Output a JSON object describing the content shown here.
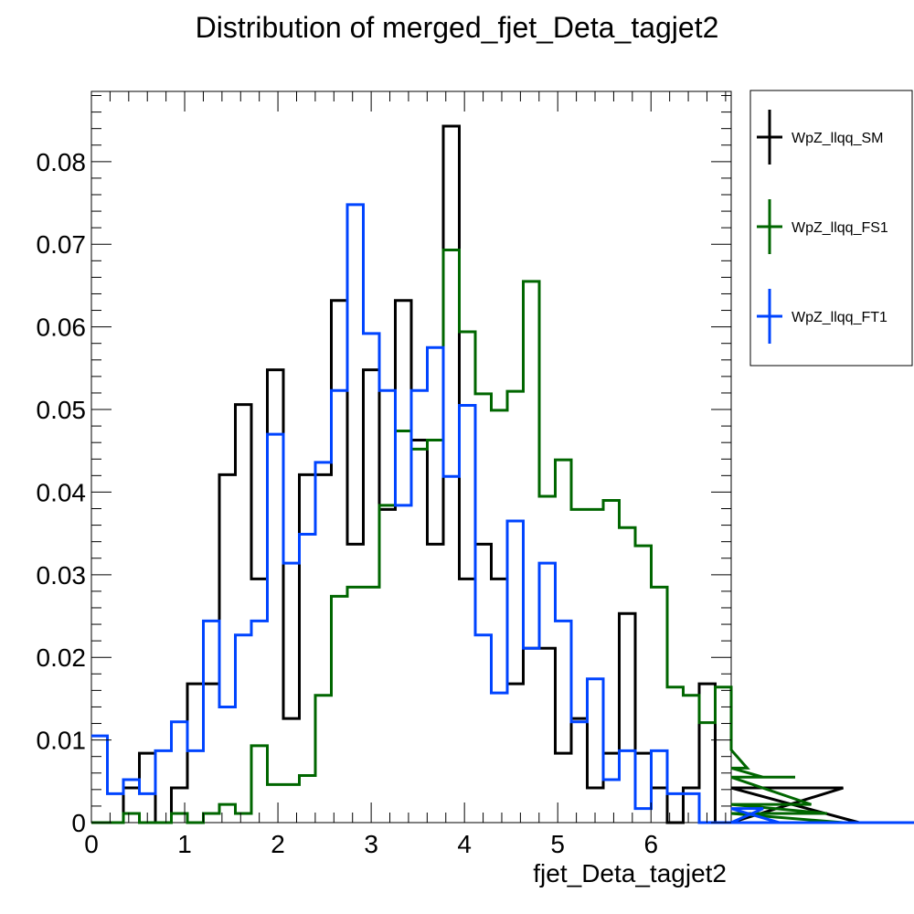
{
  "title": "Distribution of merged_fjet_Deta_tagjet2",
  "chart_data": {
    "type": "step-histogram",
    "title": "Distribution of merged_fjet_Deta_tagjet2",
    "xlabel": "fjet_Deta_tagjet2",
    "ylabel": "",
    "xlim": [
      0,
      6.86
    ],
    "ylim": [
      0,
      0.0885
    ],
    "bin_width": 0.1715,
    "x_ticks": [
      0,
      1,
      2,
      3,
      4,
      5,
      6
    ],
    "y_ticks": [
      0,
      0.01,
      0.02,
      0.03,
      0.04,
      0.05,
      0.06,
      0.07,
      0.08
    ],
    "x_tick_labels": [
      "0",
      "1",
      "2",
      "3",
      "4",
      "5",
      "6"
    ],
    "y_tick_labels": [
      "0",
      "0.01",
      "0.02",
      "0.03",
      "0.04",
      "0.05",
      "0.06",
      "0.07",
      "0.08"
    ],
    "legend_position": "right-outside-top",
    "grid": false,
    "series": [
      {
        "name": "WpZ_llqq_SM",
        "color": "#000000",
        "values": [
          0,
          0,
          0.0042,
          0.0084,
          0,
          0.0042,
          0.0168,
          0.0168,
          0.0421,
          0.0506,
          0.0295,
          0.0548,
          0.0126,
          0.0421,
          0.0421,
          0.0632,
          0.0337,
          0.0548,
          0.0379,
          0.0632,
          0.0463,
          0.0337,
          0.0843,
          0.0295,
          0.0337,
          0.0295,
          0.0168,
          0.0211,
          0.0211,
          0.0084,
          0.0126,
          0.0042,
          0.0084,
          0.0253,
          0.0084,
          0.0042,
          0,
          0.0042,
          0.0168,
          0,
          0,
          0,
          0,
          0,
          0,
          0,
          0,
          0.0042,
          0,
          0,
          0,
          0,
          0,
          0,
          0,
          0,
          0,
          0,
          0,
          0
        ]
      },
      {
        "name": "WpZ_llqq_FS1",
        "color": "#006600",
        "values": [
          0,
          0,
          0.0011,
          0,
          0,
          0.0011,
          0,
          0.0011,
          0.0022,
          0.0011,
          0.0093,
          0.0046,
          0.0046,
          0.0057,
          0.0154,
          0.0274,
          0.0285,
          0.0285,
          0.0384,
          0.0474,
          0.0452,
          0.0463,
          0.0693,
          0.0594,
          0.0519,
          0.0499,
          0.0522,
          0.0655,
          0.0395,
          0.0439,
          0.0379,
          0.0379,
          0.039,
          0.0357,
          0.0335,
          0.0285,
          0.0164,
          0.0154,
          0.0121,
          0.0164,
          0.0088,
          0.0066,
          0.0055,
          0.0055,
          0.0055,
          0.0022,
          0.0011,
          0,
          0,
          0,
          0,
          0,
          0,
          0,
          0,
          0,
          0,
          0,
          0,
          0
        ]
      },
      {
        "name": "WpZ_llqq_FT1",
        "color": "#0044ff",
        "values": [
          0.0105,
          0.0035,
          0.0052,
          0.0035,
          0.0087,
          0.0122,
          0.0087,
          0.0244,
          0.014,
          0.0227,
          0.0244,
          0.047,
          0.0314,
          0.0349,
          0.0436,
          0.0523,
          0.0748,
          0.0592,
          0.0523,
          0.0384,
          0.0523,
          0.0575,
          0.0419,
          0.0505,
          0.0227,
          0.0157,
          0.0365,
          0.0211,
          0.0314,
          0.0244,
          0.0122,
          0.0174,
          0.0052,
          0.0087,
          0.0017,
          0.0087,
          0.0035,
          0.0035,
          0,
          0,
          0,
          0,
          0.0017,
          0,
          0,
          0,
          0,
          0,
          0,
          0,
          0,
          0,
          0,
          0,
          0,
          0,
          0,
          0,
          0,
          0
        ]
      }
    ]
  }
}
